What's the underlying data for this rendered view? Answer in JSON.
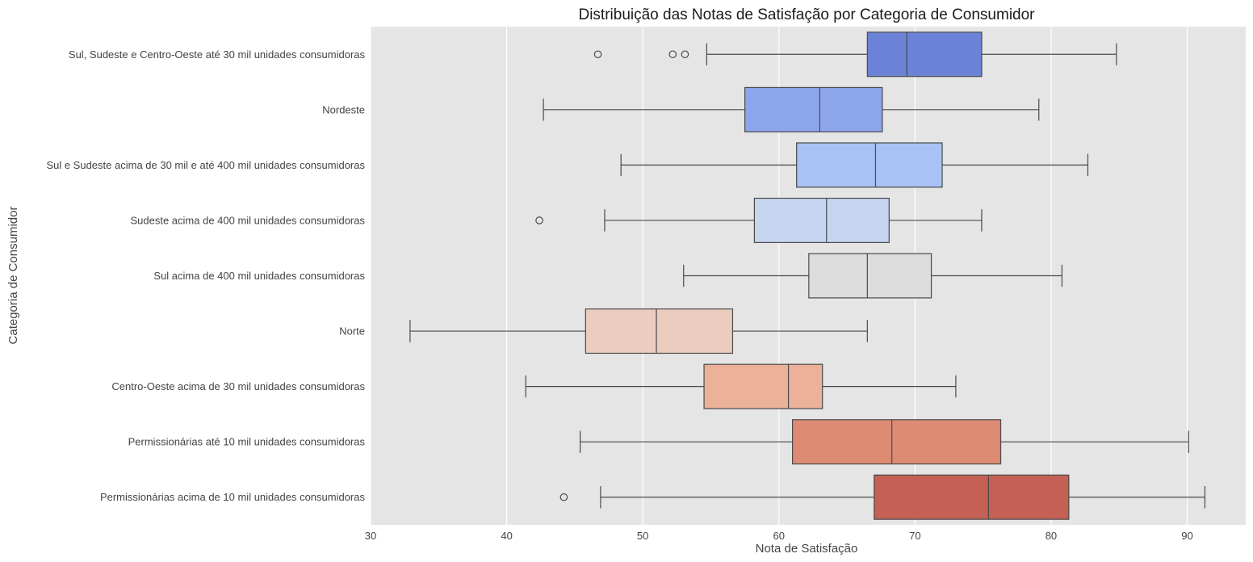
{
  "chart_data": {
    "type": "boxplot",
    "orientation": "horizontal",
    "title": "Distribuição das Notas de Satisfação por Categoria de Consumidor",
    "xlabel": "Nota de Satisfação",
    "ylabel": "Categoria de Consumidor",
    "xlim": [
      30,
      94.3
    ],
    "xticks": [
      30,
      40,
      50,
      60,
      70,
      80,
      90
    ],
    "grid": "vertical",
    "palette": "coolwarm",
    "background": "#e5e5e5",
    "categories": [
      {
        "name": "Sul, Sudeste e Centro-Oeste até 30 mil unidades consumidoras",
        "whisker_low": 54.7,
        "q1": 66.5,
        "median": 69.4,
        "q3": 74.9,
        "whisker_high": 84.8,
        "outliers": [
          46.7,
          52.2,
          53.1
        ],
        "color": "#6b82d6"
      },
      {
        "name": "Nordeste",
        "whisker_low": 42.7,
        "q1": 57.5,
        "median": 63.0,
        "q3": 67.6,
        "whisker_high": 79.1,
        "outliers": [],
        "color": "#8ca5eb"
      },
      {
        "name": "Sul e Sudeste acima de 30 mil e até 400 mil unidades consumidoras",
        "whisker_low": 48.4,
        "q1": 61.3,
        "median": 67.1,
        "q3": 72.0,
        "whisker_high": 82.7,
        "outliers": [],
        "color": "#a9c1f5"
      },
      {
        "name": "Sudeste acima de 400 mil unidades consumidoras",
        "whisker_low": 47.2,
        "q1": 58.2,
        "median": 63.5,
        "q3": 68.1,
        "whisker_high": 74.9,
        "outliers": [
          42.4
        ],
        "color": "#c6d5f0"
      },
      {
        "name": "Sul acima de 400 mil unidades consumidoras",
        "whisker_low": 53.0,
        "q1": 62.2,
        "median": 66.5,
        "q3": 71.2,
        "whisker_high": 80.8,
        "outliers": [],
        "color": "#dcdcdc"
      },
      {
        "name": "Norte",
        "whisker_low": 32.9,
        "q1": 45.8,
        "median": 51.0,
        "q3": 56.6,
        "whisker_high": 66.5,
        "outliers": [],
        "color": "#eacdbf"
      },
      {
        "name": "Centro-Oeste acima de 30 mil unidades consumidoras",
        "whisker_low": 41.4,
        "q1": 54.5,
        "median": 60.7,
        "q3": 63.2,
        "whisker_high": 73.0,
        "outliers": [],
        "color": "#ebb199"
      },
      {
        "name": "Permissionárias até 10 mil unidades consumidoras",
        "whisker_low": 45.4,
        "q1": 61.0,
        "median": 68.3,
        "q3": 76.3,
        "whisker_high": 90.1,
        "outliers": [],
        "color": "#de8b74"
      },
      {
        "name": "Permissionárias acima de 10 mil unidades consumidoras",
        "whisker_low": 46.9,
        "q1": 67.0,
        "median": 75.4,
        "q3": 81.3,
        "whisker_high": 91.3,
        "outliers": [
          44.2
        ],
        "color": "#c46054"
      }
    ]
  }
}
